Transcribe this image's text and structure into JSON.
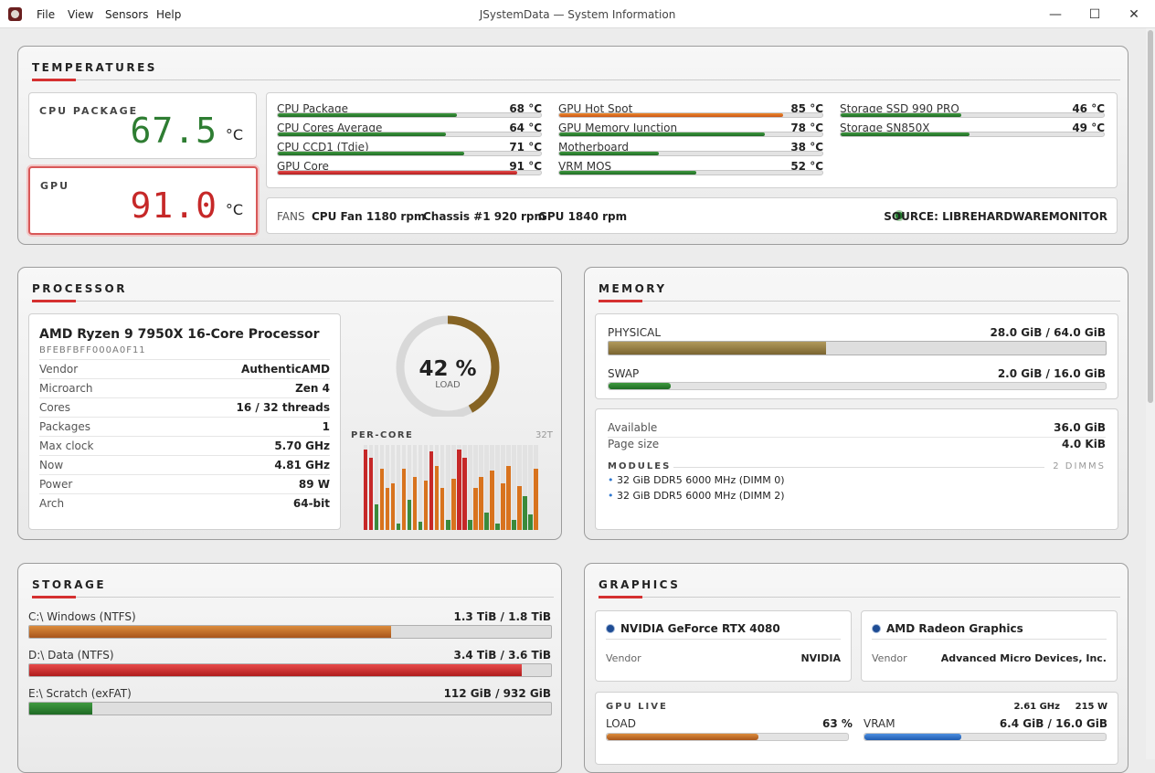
{
  "window": {
    "title": "JSystemData — System Information",
    "menu": [
      "File",
      "View",
      "Sensors",
      "Help"
    ],
    "controls": [
      "—",
      "☐",
      "✕"
    ]
  },
  "temperatures": {
    "title": "TEMPERATURES",
    "cpu_package": {
      "label": "CPU PACKAGE",
      "value": "67.5",
      "unit": "°C",
      "color": "#2e7d32"
    },
    "gpu": {
      "label": "GPU",
      "value": "91.0",
      "unit": "°C",
      "color": "#c62828"
    },
    "sensors": [
      {
        "name": "CPU Package",
        "value": "68 °C",
        "level": 0.68,
        "color": "green"
      },
      {
        "name": "CPU Cores Average",
        "value": "64 °C",
        "level": 0.64,
        "color": "green"
      },
      {
        "name": "CPU CCD1 (Tdie)",
        "value": "71 °C",
        "level": 0.71,
        "color": "green"
      },
      {
        "name": "GPU Core",
        "value": "91 °C",
        "level": 0.91,
        "color": "red"
      },
      {
        "name": "GPU Hot Spot",
        "value": "85 °C",
        "level": 0.85,
        "color": "orange"
      },
      {
        "name": "GPU Memory Junction",
        "value": "78 °C",
        "level": 0.78,
        "color": "green"
      },
      {
        "name": "Motherboard",
        "value": "38 °C",
        "level": 0.38,
        "color": "green"
      },
      {
        "name": "VRM MOS",
        "value": "52 °C",
        "level": 0.52,
        "color": "green"
      },
      {
        "name": "Storage SSD 990 PRO",
        "value": "46 °C",
        "level": 0.46,
        "color": "green"
      },
      {
        "name": "Storage SN850X",
        "value": "49 °C",
        "level": 0.49,
        "color": "green"
      }
    ],
    "fans": {
      "label": "FANS",
      "items": [
        "CPU Fan 1180 rpm",
        "Chassis #1 920 rpm",
        "GPU 1840 rpm"
      ]
    },
    "source": "SOURCE: LIBREHARDWAREMONITOR"
  },
  "processor": {
    "title": "PROCESSOR",
    "name": "AMD Ryzen 9 7950X 16-Core Processor",
    "id": "BFEBFBFF000A0F11",
    "specs": [
      {
        "k": "Vendor",
        "v": "AuthenticAMD"
      },
      {
        "k": "Microarch",
        "v": "Zen 4"
      },
      {
        "k": "Cores",
        "v": "16 / 32 threads"
      },
      {
        "k": "Packages",
        "v": "1"
      },
      {
        "k": "Max clock",
        "v": "5.70 GHz"
      },
      {
        "k": "Now",
        "v": "4.81 GHz"
      },
      {
        "k": "Power",
        "v": "89 W"
      },
      {
        "k": "Arch",
        "v": "64-bit"
      }
    ],
    "load": {
      "value": "42 %",
      "label": "LOAD",
      "fraction": 0.42
    },
    "per_core": {
      "label": "PER-CORE",
      "threads": "32T",
      "loads": [
        0.95,
        0.85,
        0.3,
        0.72,
        0.5,
        0.55,
        0.08,
        0.72,
        0.35,
        0.62,
        0.1,
        0.58,
        0.92,
        0.75,
        0.5,
        0.12,
        0.6,
        0.95,
        0.85,
        0.12,
        0.5,
        0.62,
        0.2,
        0.7,
        0.08,
        0.55,
        0.75,
        0.12,
        0.52,
        0.4,
        0.18,
        0.72
      ]
    }
  },
  "memory": {
    "title": "MEMORY",
    "physical": {
      "label": "PHYSICAL",
      "value": "28.0 GiB / 64.0 GiB",
      "fraction": 0.4375
    },
    "swap": {
      "label": "SWAP",
      "value": "2.0 GiB / 16.0 GiB",
      "fraction": 0.125
    },
    "available": {
      "k": "Available",
      "v": "36.0 GiB"
    },
    "page_size": {
      "k": "Page size",
      "v": "4.0 KiB"
    },
    "modules_label": "MODULES",
    "modules_count": "2 DIMMS",
    "modules": [
      "32 GiB DDR5 6000 MHz (DIMM 0)",
      "32 GiB DDR5 6000 MHz (DIMM 2)"
    ]
  },
  "storage": {
    "title": "STORAGE",
    "drives": [
      {
        "name": "C:\\  Windows (NTFS)",
        "value": "1.3 TiB / 1.8 TiB",
        "fraction": 0.694,
        "color": "orange"
      },
      {
        "name": "D:\\  Data (NTFS)",
        "value": "3.4 TiB / 3.6 TiB",
        "fraction": 0.944,
        "color": "red"
      },
      {
        "name": "E:\\  Scratch (exFAT)",
        "value": "112 GiB / 932 GiB",
        "fraction": 0.12,
        "color": "green"
      }
    ]
  },
  "graphics": {
    "title": "GRAPHICS",
    "gpus": [
      {
        "name": "NVIDIA GeForce RTX 4080",
        "vendor_k": "Vendor",
        "vendor_v": "NVIDIA"
      },
      {
        "name": "AMD Radeon Graphics",
        "vendor_k": "Vendor",
        "vendor_v": "Advanced Micro Devices, Inc."
      }
    ],
    "live": {
      "label": "GPU LIVE",
      "clock": "2.61 GHz",
      "power": "215 W",
      "load": {
        "label": "LOAD",
        "value": "63 %",
        "fraction": 0.63
      },
      "vram": {
        "label": "VRAM",
        "value": "6.4 GiB / 16.0 GiB",
        "fraction": 0.4
      }
    }
  }
}
